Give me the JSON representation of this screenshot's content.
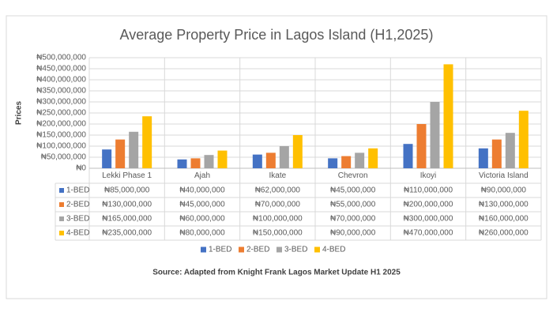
{
  "chart_data": {
    "type": "bar",
    "title": "Average Property Price in Lagos Island (H1,2025)",
    "y_label": "Prices",
    "source": "Source: Adapted from Knight Frank Lagos Market Update H1 2025",
    "categories": [
      "Lekki Phase 1",
      "Ajah",
      "Ikate",
      "Chevron",
      "Ikoyi",
      "Victoria Island"
    ],
    "series": [
      {
        "name": "1-BED",
        "color": "#4472c4",
        "values": [
          85000000,
          40000000,
          62000000,
          45000000,
          110000000,
          90000000
        ],
        "value_labels": [
          "₦85,000,000",
          "₦40,000,000",
          "₦62,000,000",
          "₦45,000,000",
          "₦110,000,000",
          "₦90,000,000"
        ]
      },
      {
        "name": "2-BED",
        "color": "#ed7d31",
        "values": [
          130000000,
          45000000,
          70000000,
          55000000,
          200000000,
          130000000
        ],
        "value_labels": [
          "₦130,000,000",
          "₦45,000,000",
          "₦70,000,000",
          "₦55,000,000",
          "₦200,000,000",
          "₦130,000,000"
        ]
      },
      {
        "name": "3-BED",
        "color": "#a5a5a5",
        "values": [
          165000000,
          60000000,
          100000000,
          70000000,
          300000000,
          160000000
        ],
        "value_labels": [
          "₦165,000,000",
          "₦60,000,000",
          "₦100,000,000",
          "₦70,000,000",
          "₦300,000,000",
          "₦160,000,000"
        ]
      },
      {
        "name": "4-BED",
        "color": "#ffc000",
        "values": [
          235000000,
          80000000,
          150000000,
          90000000,
          470000000,
          260000000
        ],
        "value_labels": [
          "₦235,000,000",
          "₦80,000,000",
          "₦150,000,000",
          "₦90,000,000",
          "₦470,000,000",
          "₦260,000,000"
        ]
      }
    ],
    "ylim": [
      0,
      500000000
    ],
    "yticks": [
      {
        "value": 0,
        "label": "₦0"
      },
      {
        "value": 50000000,
        "label": "₦50,000,000"
      },
      {
        "value": 100000000,
        "label": "₦100,000,000"
      },
      {
        "value": 150000000,
        "label": "₦150,000,000"
      },
      {
        "value": 200000000,
        "label": "₦200,000,000"
      },
      {
        "value": 250000000,
        "label": "₦250,000,000"
      },
      {
        "value": 300000000,
        "label": "₦300,000,000"
      },
      {
        "value": 350000000,
        "label": "₦350,000,000"
      },
      {
        "value": 400000000,
        "label": "₦400,000,000"
      },
      {
        "value": 450000000,
        "label": "₦450,000,000"
      },
      {
        "value": 500000000,
        "label": "₦500,000,000"
      }
    ],
    "grid": true
  }
}
